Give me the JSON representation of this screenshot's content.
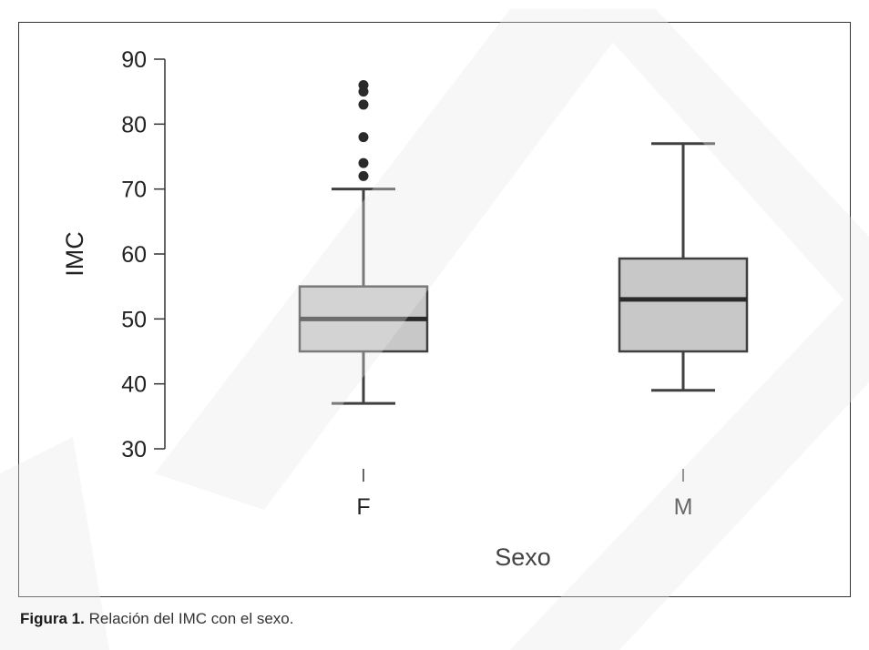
{
  "caption": {
    "label": "Figura 1.",
    "text": " Relación del IMC con el sexo."
  },
  "colors": {
    "box_fill": "#c8c8c8",
    "box_stroke": "#404040",
    "outlier": "#2a2a2a",
    "axis": "#333333"
  },
  "chart_data": {
    "type": "boxplot",
    "xlabel": "Sexo",
    "ylabel": "IMC",
    "ylim": [
      30,
      90
    ],
    "yticks": [
      30,
      40,
      50,
      60,
      70,
      80,
      90
    ],
    "categories": [
      "F",
      "M"
    ],
    "boxes": [
      {
        "category": "F",
        "whisker_low": 37,
        "q1": 45,
        "median": 50,
        "q3": 55,
        "whisker_high": 70,
        "outliers": [
          72,
          74,
          78,
          83,
          85,
          86
        ]
      },
      {
        "category": "M",
        "whisker_low": 39,
        "q1": 45,
        "median": 53,
        "q3": 59.3,
        "whisker_high": 77,
        "outliers": []
      }
    ],
    "grid": false,
    "legend": "none"
  }
}
